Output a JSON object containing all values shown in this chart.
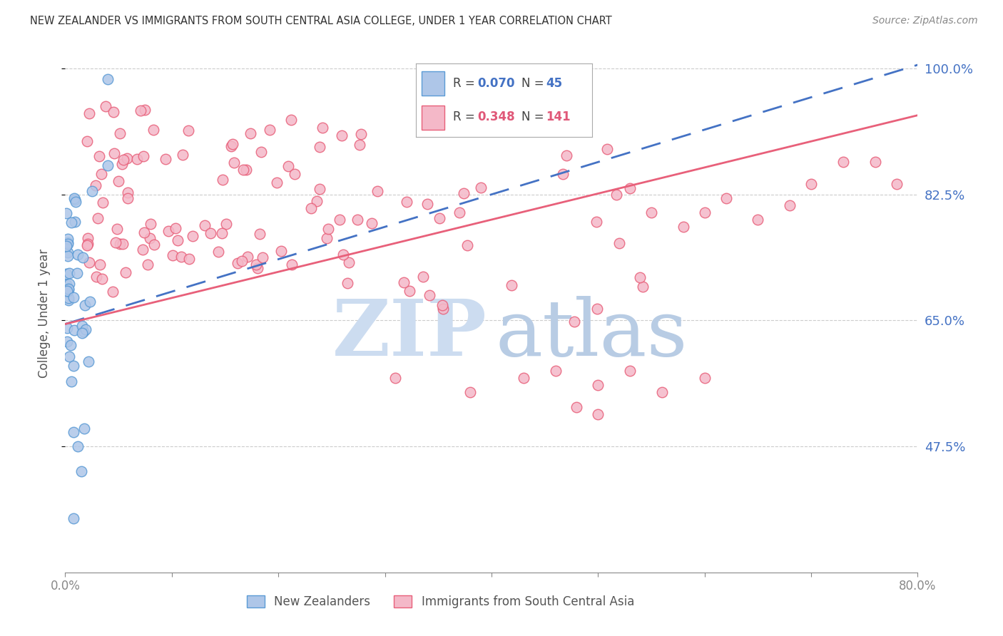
{
  "title": "NEW ZEALANDER VS IMMIGRANTS FROM SOUTH CENTRAL ASIA COLLEGE, UNDER 1 YEAR CORRELATION CHART",
  "source": "Source: ZipAtlas.com",
  "ylabel": "College, Under 1 year",
  "xmin": 0.0,
  "xmax": 0.8,
  "ymin": 0.3,
  "ymax": 1.02,
  "yticks": [
    0.475,
    0.65,
    0.825,
    1.0
  ],
  "ytick_labels": [
    "47.5%",
    "65.0%",
    "82.5%",
    "100.0%"
  ],
  "xticks": [
    0.0,
    0.1,
    0.2,
    0.3,
    0.4,
    0.5,
    0.6,
    0.7,
    0.8
  ],
  "xtick_labels": [
    "0.0%",
    "",
    "",
    "",
    "",
    "",
    "",
    "",
    "80.0%"
  ],
  "nz_color": "#aec6e8",
  "nz_edge_color": "#5b9bd5",
  "imm_color": "#f4b8c8",
  "imm_edge_color": "#e8607a",
  "nz_R": 0.07,
  "nz_N": 45,
  "imm_R": 0.348,
  "imm_N": 141,
  "legend_nz_R_color": "#4472c4",
  "legend_imm_R_color": "#e05878",
  "nz_line_color": "#4472c4",
  "imm_line_color": "#e8607a",
  "nz_line_x0": 0.0,
  "nz_line_x1": 0.8,
  "nz_line_y0": 0.645,
  "nz_line_y1": 1.005,
  "imm_line_x0": 0.0,
  "imm_line_x1": 0.8,
  "imm_line_y0": 0.645,
  "imm_line_y1": 0.935,
  "grid_color": "#cccccc",
  "title_color": "#333333",
  "axis_label_color": "#555555",
  "tick_label_color": "#4472c4",
  "watermark_zip_color": "#ccdcf0",
  "watermark_atlas_color": "#b8cce4"
}
